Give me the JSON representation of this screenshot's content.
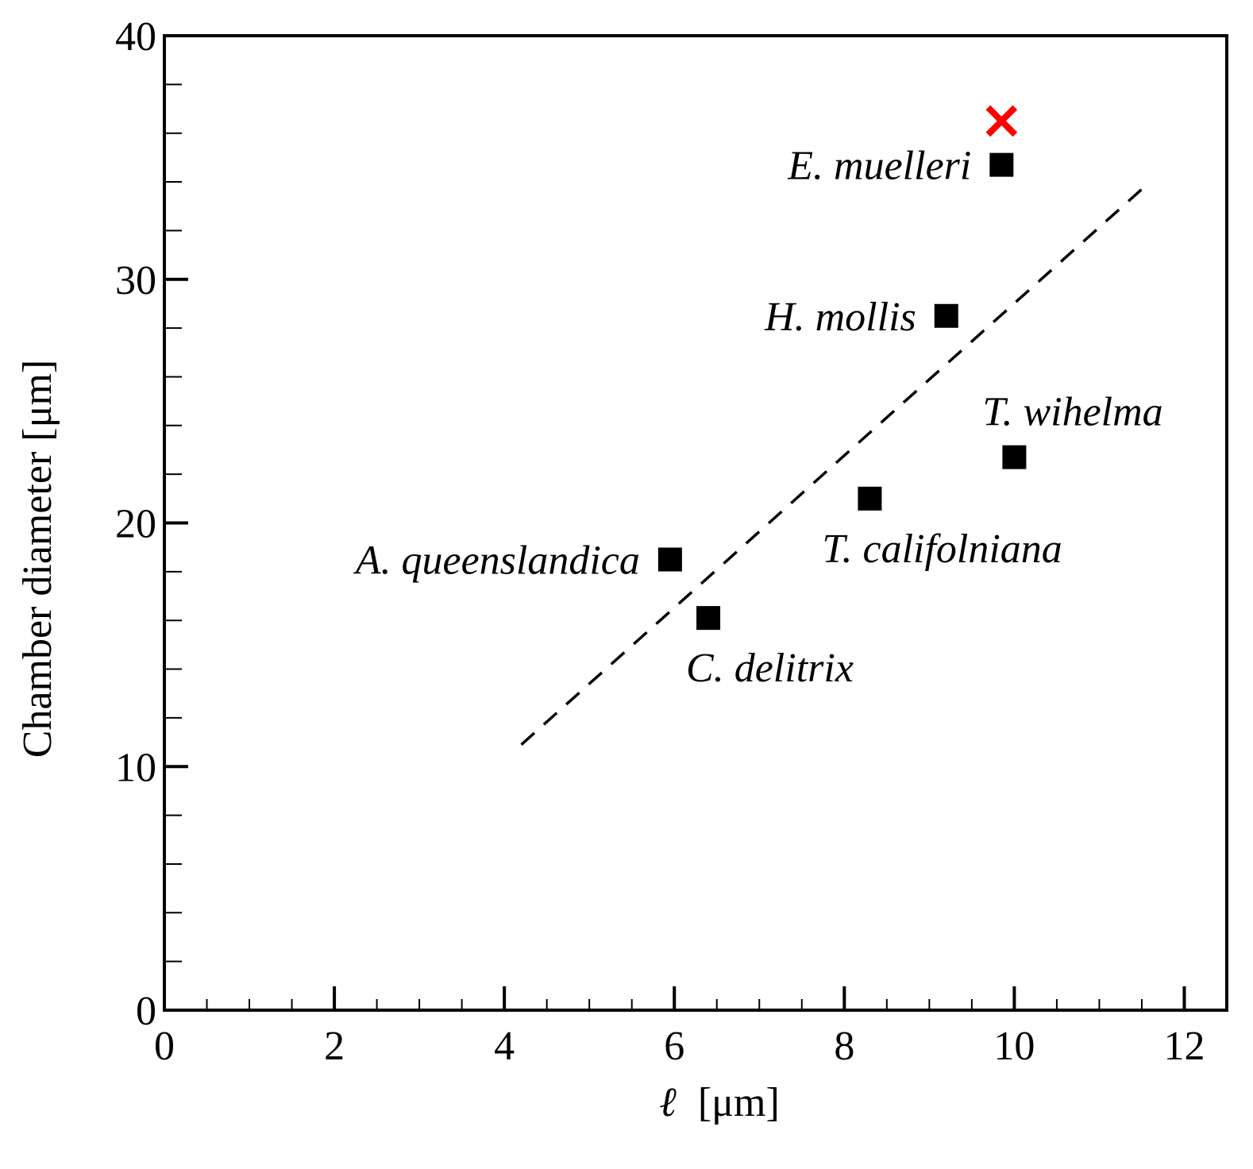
{
  "chart_data": {
    "type": "scatter",
    "title": "",
    "xlabel_symbol": "ℓ",
    "xlabel_unit": "[μm]",
    "ylabel": "Chamber diameter [μm]",
    "xlim": [
      0,
      12.5
    ],
    "ylim": [
      0,
      40
    ],
    "x_ticks": [
      0,
      2,
      4,
      6,
      8,
      10,
      12
    ],
    "y_ticks": [
      0,
      10,
      20,
      30,
      40
    ],
    "x_minor_step": 0.5,
    "y_minor_step": 2,
    "grid": false,
    "points": [
      {
        "name": "E. muelleri",
        "label": "E. muelleri",
        "x": 9.85,
        "y": 34.7,
        "label_side": "left"
      },
      {
        "name": "H. mollis",
        "label": "H. mollis",
        "x": 9.2,
        "y": 28.5,
        "label_side": "left"
      },
      {
        "name": "T. wihelma",
        "label": "T. wihelma",
        "x": 10.0,
        "y": 22.7,
        "label_side": "above"
      },
      {
        "name": "T. califolniana",
        "label": "T. califolniana",
        "x": 8.3,
        "y": 21.0,
        "label_side": "below"
      },
      {
        "name": "A. queenslandica",
        "label": "A. queenslandica",
        "x": 5.95,
        "y": 18.5,
        "label_side": "left"
      },
      {
        "name": "C. delitrix",
        "label": "C. delitrix",
        "x": 6.4,
        "y": 16.1,
        "label_side": "below"
      }
    ],
    "outlier_marker": {
      "x": 9.85,
      "y": 36.5,
      "color": "#ff0000"
    },
    "fit_line": {
      "x": [
        4.2,
        11.5
      ],
      "y": [
        10.9,
        33.7
      ],
      "style": "dashed"
    }
  }
}
